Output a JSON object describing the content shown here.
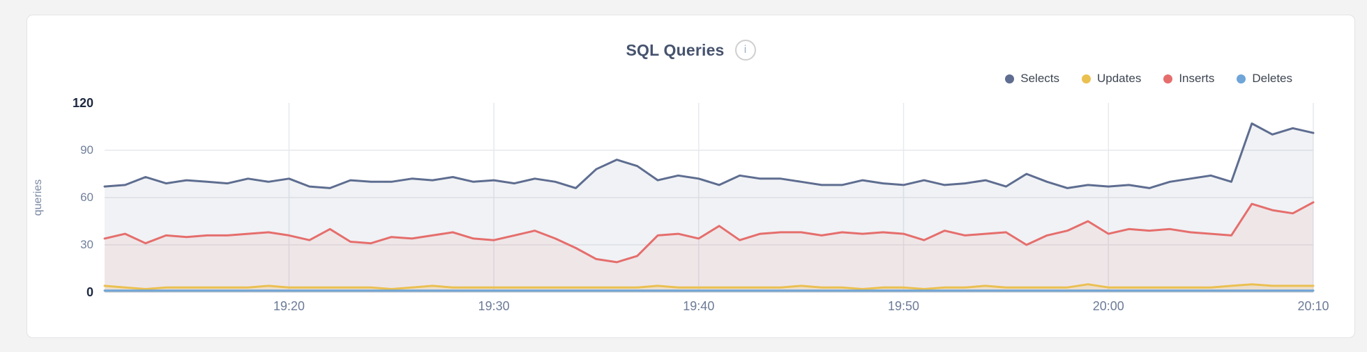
{
  "page": {
    "title": "SQL Queries",
    "info_glyph": "i"
  },
  "chart_data": {
    "type": "area",
    "title": "SQL Queries",
    "xlabel": "",
    "ylabel": "queries",
    "ylim": [
      0,
      120
    ],
    "yticks": [
      0,
      30,
      60,
      90,
      120
    ],
    "ytick_labels": [
      "120",
      "90",
      "60",
      "30",
      "0"
    ],
    "x_labels": [
      "19:20",
      "19:30",
      "19:40",
      "19:50",
      "20:00",
      "20:10"
    ],
    "x_label_indices": [
      9,
      19,
      29,
      39,
      49,
      59
    ],
    "x_start": "19:11",
    "x_step_minutes": 1,
    "grid": true,
    "legend_position": "top-right",
    "series": [
      {
        "name": "Selects",
        "color": "#5e6d90",
        "fill_opacity": 0.09,
        "values": [
          67,
          68,
          73,
          69,
          71,
          70,
          69,
          72,
          70,
          72,
          67,
          66,
          71,
          70,
          70,
          72,
          71,
          73,
          70,
          71,
          69,
          72,
          70,
          66,
          78,
          84,
          80,
          71,
          74,
          72,
          68,
          74,
          72,
          72,
          70,
          68,
          68,
          71,
          69,
          68,
          71,
          68,
          69,
          71,
          67,
          75,
          70,
          66,
          68,
          67,
          68,
          66,
          70,
          72,
          74,
          70,
          107,
          100,
          104,
          101
        ]
      },
      {
        "name": "Updates",
        "color": "#eac050",
        "fill_opacity": 0.18,
        "values": [
          4,
          3,
          2,
          3,
          3,
          3,
          3,
          3,
          4,
          3,
          3,
          3,
          3,
          3,
          2,
          3,
          4,
          3,
          3,
          3,
          3,
          3,
          3,
          3,
          3,
          3,
          3,
          4,
          3,
          3,
          3,
          3,
          3,
          3,
          4,
          3,
          3,
          2,
          3,
          3,
          2,
          3,
          3,
          4,
          3,
          3,
          3,
          3,
          5,
          3,
          3,
          3,
          3,
          3,
          3,
          4,
          5,
          4,
          4,
          4
        ]
      },
      {
        "name": "Inserts",
        "color": "#e56e6c",
        "fill_opacity": 0.09,
        "values": [
          34,
          37,
          31,
          36,
          35,
          36,
          36,
          37,
          38,
          36,
          33,
          40,
          32,
          31,
          35,
          34,
          36,
          38,
          34,
          33,
          36,
          39,
          34,
          28,
          21,
          19,
          23,
          36,
          37,
          34,
          42,
          33,
          37,
          38,
          38,
          36,
          38,
          37,
          38,
          37,
          33,
          39,
          36,
          37,
          38,
          30,
          36,
          39,
          45,
          37,
          40,
          39,
          40,
          38,
          37,
          36,
          56,
          52,
          50,
          57
        ]
      },
      {
        "name": "Deletes",
        "color": "#6fa5d8",
        "fill_opacity": 0.22,
        "values": [
          1,
          1,
          1,
          1,
          1,
          1,
          1,
          1,
          1,
          1,
          1,
          1,
          1,
          1,
          1,
          1,
          1,
          1,
          1,
          1,
          1,
          1,
          1,
          1,
          1,
          1,
          1,
          1,
          1,
          1,
          1,
          1,
          1,
          1,
          1,
          1,
          1,
          1,
          1,
          1,
          1,
          1,
          1,
          1,
          1,
          1,
          1,
          1,
          1,
          1,
          1,
          1,
          1,
          1,
          1,
          1,
          1,
          1,
          1,
          1
        ]
      }
    ]
  }
}
